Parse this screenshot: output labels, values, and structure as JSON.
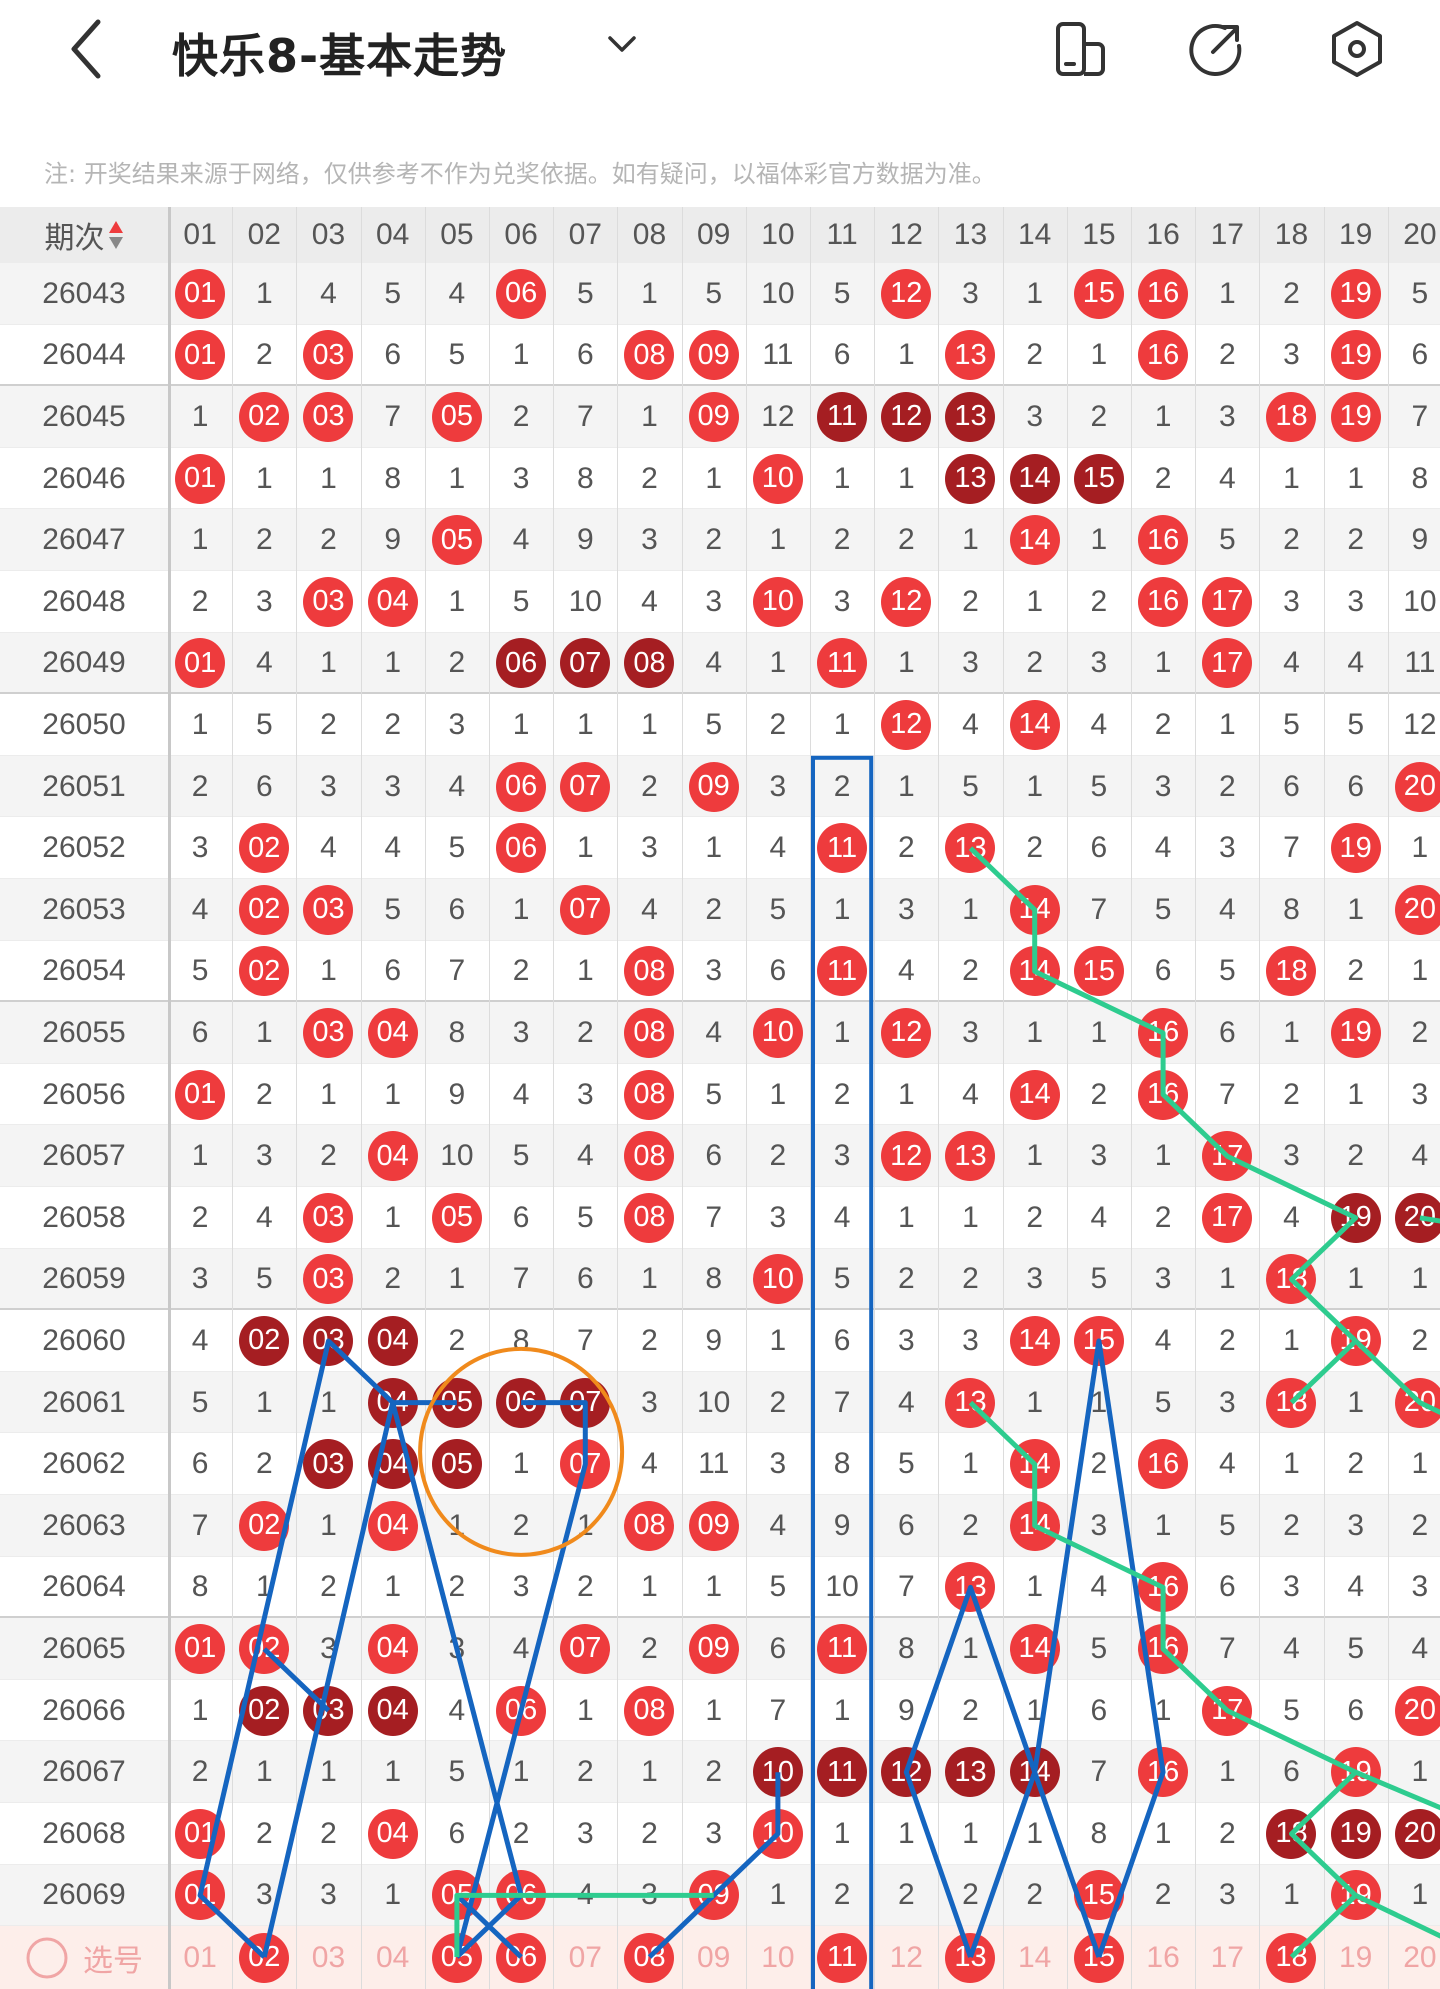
{
  "header": {
    "title": "快乐8-基本走势",
    "back_icon": "chevron-left-icon",
    "dropdown_icon": "chevron-down-icon",
    "icons": [
      "phone-rotate-icon",
      "share-icon",
      "settings-icon"
    ]
  },
  "note": "注: 开奖结果来源于网络，仅供参考不作为兑奖依据。如有疑问，以福体彩官方数据为准。",
  "colors": {
    "hit": "#ee3b3d",
    "consecutive": "#a51e22",
    "trend_blue": "#1565c0",
    "trend_green": "#2ecc8f",
    "highlight_circle": "#f08a1c"
  },
  "table": {
    "period_header": "期次",
    "columns": [
      "01",
      "02",
      "03",
      "04",
      "05",
      "06",
      "07",
      "08",
      "09",
      "10",
      "11",
      "12",
      "13",
      "14",
      "15",
      "16",
      "17",
      "18",
      "19",
      "20"
    ],
    "rows": [
      {
        "period": "26043",
        "values": [
          "01",
          "1",
          "4",
          "5",
          "4",
          "06",
          "5",
          "1",
          "5",
          "10",
          "5",
          "12",
          "3",
          "1",
          "15",
          "16",
          "1",
          "2",
          "19",
          "5"
        ],
        "hits": [
          "01",
          "06",
          "12",
          "15",
          "16",
          "19"
        ],
        "dark": []
      },
      {
        "period": "26044",
        "values": [
          "01",
          "2",
          "03",
          "6",
          "5",
          "1",
          "6",
          "08",
          "09",
          "11",
          "6",
          "1",
          "13",
          "2",
          "1",
          "16",
          "2",
          "3",
          "19",
          "6"
        ],
        "hits": [
          "01",
          "03",
          "08",
          "09",
          "13",
          "16",
          "19"
        ],
        "dark": []
      },
      {
        "period": "26045",
        "values": [
          "1",
          "02",
          "03",
          "7",
          "05",
          "2",
          "7",
          "1",
          "09",
          "12",
          "11",
          "12",
          "13",
          "3",
          "2",
          "1",
          "3",
          "18",
          "19",
          "7"
        ],
        "hits": [
          "02",
          "03",
          "05",
          "09",
          "11",
          "12",
          "13",
          "18",
          "19"
        ],
        "dark": [
          "11",
          "12",
          "13"
        ]
      },
      {
        "period": "26046",
        "values": [
          "01",
          "1",
          "1",
          "8",
          "1",
          "3",
          "8",
          "2",
          "1",
          "10",
          "1",
          "1",
          "13",
          "14",
          "15",
          "2",
          "4",
          "1",
          "1",
          "8"
        ],
        "hits": [
          "01",
          "10",
          "13",
          "14",
          "15"
        ],
        "dark": [
          "13",
          "14",
          "15"
        ]
      },
      {
        "period": "26047",
        "values": [
          "1",
          "2",
          "2",
          "9",
          "05",
          "4",
          "9",
          "3",
          "2",
          "1",
          "2",
          "2",
          "1",
          "14",
          "1",
          "16",
          "5",
          "2",
          "2",
          "9"
        ],
        "hits": [
          "05",
          "14",
          "16"
        ],
        "dark": []
      },
      {
        "period": "26048",
        "values": [
          "2",
          "3",
          "03",
          "04",
          "1",
          "5",
          "10",
          "4",
          "3",
          "10",
          "3",
          "12",
          "2",
          "1",
          "2",
          "16",
          "17",
          "3",
          "3",
          "10"
        ],
        "hits": [
          "03",
          "04",
          "10",
          "12",
          "16",
          "17"
        ],
        "dark": []
      },
      {
        "period": "26049",
        "values": [
          "01",
          "4",
          "1",
          "1",
          "2",
          "06",
          "07",
          "08",
          "4",
          "1",
          "11",
          "1",
          "3",
          "2",
          "3",
          "1",
          "17",
          "4",
          "4",
          "11"
        ],
        "hits": [
          "01",
          "06",
          "07",
          "08",
          "11",
          "17"
        ],
        "dark": [
          "06",
          "07",
          "08"
        ]
      },
      {
        "period": "26050",
        "values": [
          "1",
          "5",
          "2",
          "2",
          "3",
          "1",
          "1",
          "1",
          "5",
          "2",
          "1",
          "12",
          "4",
          "14",
          "4",
          "2",
          "1",
          "5",
          "5",
          "12"
        ],
        "hits": [
          "12",
          "14"
        ],
        "dark": []
      },
      {
        "period": "26051",
        "values": [
          "2",
          "6",
          "3",
          "3",
          "4",
          "06",
          "07",
          "2",
          "09",
          "3",
          "2",
          "1",
          "5",
          "1",
          "5",
          "3",
          "2",
          "6",
          "6",
          "20"
        ],
        "hits": [
          "06",
          "07",
          "09",
          "20"
        ],
        "dark": []
      },
      {
        "period": "26052",
        "values": [
          "3",
          "02",
          "4",
          "4",
          "5",
          "06",
          "1",
          "3",
          "1",
          "4",
          "11",
          "2",
          "13",
          "2",
          "6",
          "4",
          "3",
          "7",
          "19",
          "1"
        ],
        "hits": [
          "02",
          "06",
          "11",
          "13",
          "19"
        ],
        "dark": []
      },
      {
        "period": "26053",
        "values": [
          "4",
          "02",
          "03",
          "5",
          "6",
          "1",
          "07",
          "4",
          "2",
          "5",
          "1",
          "3",
          "1",
          "14",
          "7",
          "5",
          "4",
          "8",
          "1",
          "20"
        ],
        "hits": [
          "02",
          "03",
          "07",
          "14",
          "20"
        ],
        "dark": []
      },
      {
        "period": "26054",
        "values": [
          "5",
          "02",
          "1",
          "6",
          "7",
          "2",
          "1",
          "08",
          "3",
          "6",
          "11",
          "4",
          "2",
          "14",
          "15",
          "6",
          "5",
          "18",
          "2",
          "1"
        ],
        "hits": [
          "02",
          "08",
          "11",
          "14",
          "15",
          "18"
        ],
        "dark": []
      },
      {
        "period": "26055",
        "values": [
          "6",
          "1",
          "03",
          "04",
          "8",
          "3",
          "2",
          "08",
          "4",
          "10",
          "1",
          "12",
          "3",
          "1",
          "1",
          "16",
          "6",
          "1",
          "19",
          "2"
        ],
        "hits": [
          "03",
          "04",
          "08",
          "10",
          "12",
          "16",
          "19"
        ],
        "dark": []
      },
      {
        "period": "26056",
        "values": [
          "01",
          "2",
          "1",
          "1",
          "9",
          "4",
          "3",
          "08",
          "5",
          "1",
          "2",
          "1",
          "4",
          "14",
          "2",
          "16",
          "7",
          "2",
          "1",
          "3"
        ],
        "hits": [
          "01",
          "08",
          "14",
          "16"
        ],
        "dark": []
      },
      {
        "period": "26057",
        "values": [
          "1",
          "3",
          "2",
          "04",
          "10",
          "5",
          "4",
          "08",
          "6",
          "2",
          "3",
          "12",
          "13",
          "1",
          "3",
          "1",
          "17",
          "3",
          "2",
          "4"
        ],
        "hits": [
          "04",
          "08",
          "12",
          "13",
          "17"
        ],
        "dark": []
      },
      {
        "period": "26058",
        "values": [
          "2",
          "4",
          "03",
          "1",
          "05",
          "6",
          "5",
          "08",
          "7",
          "3",
          "4",
          "1",
          "1",
          "2",
          "4",
          "2",
          "17",
          "4",
          "19",
          "20"
        ],
        "hits": [
          "03",
          "05",
          "08",
          "17",
          "19",
          "20"
        ],
        "dark": [
          "19",
          "20"
        ]
      },
      {
        "period": "26059",
        "values": [
          "3",
          "5",
          "03",
          "2",
          "1",
          "7",
          "6",
          "1",
          "8",
          "10",
          "5",
          "2",
          "2",
          "3",
          "5",
          "3",
          "1",
          "18",
          "1",
          "1"
        ],
        "hits": [
          "03",
          "10",
          "18"
        ],
        "dark": []
      },
      {
        "period": "26060",
        "values": [
          "4",
          "02",
          "03",
          "04",
          "2",
          "8",
          "7",
          "2",
          "9",
          "1",
          "6",
          "3",
          "3",
          "14",
          "15",
          "4",
          "2",
          "1",
          "19",
          "2"
        ],
        "hits": [
          "02",
          "03",
          "04",
          "14",
          "15",
          "19"
        ],
        "dark": [
          "02",
          "03",
          "04"
        ]
      },
      {
        "period": "26061",
        "values": [
          "5",
          "1",
          "1",
          "04",
          "05",
          "06",
          "07",
          "3",
          "10",
          "2",
          "7",
          "4",
          "13",
          "1",
          "1",
          "5",
          "3",
          "18",
          "1",
          "20"
        ],
        "hits": [
          "04",
          "05",
          "06",
          "07",
          "13",
          "18",
          "20"
        ],
        "dark": [
          "04",
          "05",
          "06",
          "07"
        ]
      },
      {
        "period": "26062",
        "values": [
          "6",
          "2",
          "03",
          "04",
          "05",
          "1",
          "07",
          "4",
          "11",
          "3",
          "8",
          "5",
          "1",
          "14",
          "2",
          "16",
          "4",
          "1",
          "2",
          "1"
        ],
        "hits": [
          "03",
          "04",
          "05",
          "07",
          "14",
          "16"
        ],
        "dark": [
          "03",
          "04",
          "05"
        ]
      },
      {
        "period": "26063",
        "values": [
          "7",
          "02",
          "1",
          "04",
          "1",
          "2",
          "1",
          "08",
          "09",
          "4",
          "9",
          "6",
          "2",
          "14",
          "3",
          "1",
          "5",
          "2",
          "3",
          "2"
        ],
        "hits": [
          "02",
          "04",
          "08",
          "09",
          "14"
        ],
        "dark": []
      },
      {
        "period": "26064",
        "values": [
          "8",
          "1",
          "2",
          "1",
          "2",
          "3",
          "2",
          "1",
          "1",
          "5",
          "10",
          "7",
          "13",
          "1",
          "4",
          "16",
          "6",
          "3",
          "4",
          "3"
        ],
        "hits": [
          "13",
          "16"
        ],
        "dark": []
      },
      {
        "period": "26065",
        "values": [
          "01",
          "02",
          "3",
          "04",
          "3",
          "4",
          "07",
          "2",
          "09",
          "6",
          "11",
          "8",
          "1",
          "14",
          "5",
          "16",
          "7",
          "4",
          "5",
          "4"
        ],
        "hits": [
          "01",
          "02",
          "04",
          "07",
          "09",
          "11",
          "14",
          "16"
        ],
        "dark": []
      },
      {
        "period": "26066",
        "values": [
          "1",
          "02",
          "03",
          "04",
          "4",
          "06",
          "1",
          "08",
          "1",
          "7",
          "1",
          "9",
          "2",
          "1",
          "6",
          "1",
          "17",
          "5",
          "6",
          "20"
        ],
        "hits": [
          "02",
          "03",
          "04",
          "06",
          "08",
          "17",
          "20"
        ],
        "dark": [
          "02",
          "03",
          "04"
        ]
      },
      {
        "period": "26067",
        "values": [
          "2",
          "1",
          "1",
          "1",
          "5",
          "1",
          "2",
          "1",
          "2",
          "10",
          "11",
          "12",
          "13",
          "14",
          "7",
          "16",
          "1",
          "6",
          "19",
          "1"
        ],
        "hits": [
          "10",
          "11",
          "12",
          "13",
          "14",
          "16",
          "19"
        ],
        "dark": [
          "10",
          "11",
          "12",
          "13",
          "14"
        ]
      },
      {
        "period": "26068",
        "values": [
          "01",
          "2",
          "2",
          "04",
          "6",
          "2",
          "3",
          "2",
          "3",
          "10",
          "1",
          "1",
          "1",
          "1",
          "8",
          "1",
          "2",
          "18",
          "19",
          "20"
        ],
        "hits": [
          "01",
          "04",
          "10",
          "18",
          "19",
          "20"
        ],
        "dark": [
          "18",
          "19",
          "20"
        ]
      },
      {
        "period": "26069",
        "values": [
          "01",
          "3",
          "3",
          "1",
          "05",
          "06",
          "4",
          "3",
          "09",
          "1",
          "2",
          "2",
          "2",
          "2",
          "15",
          "2",
          "3",
          "1",
          "19",
          "1"
        ],
        "hits": [
          "01",
          "05",
          "06",
          "09",
          "15",
          "19"
        ],
        "dark": []
      }
    ],
    "footer": {
      "label": "选号",
      "radio_icon": "circle-radio-icon",
      "selected": [
        "02",
        "05",
        "06",
        "08",
        "11",
        "13",
        "15",
        "18"
      ]
    }
  }
}
